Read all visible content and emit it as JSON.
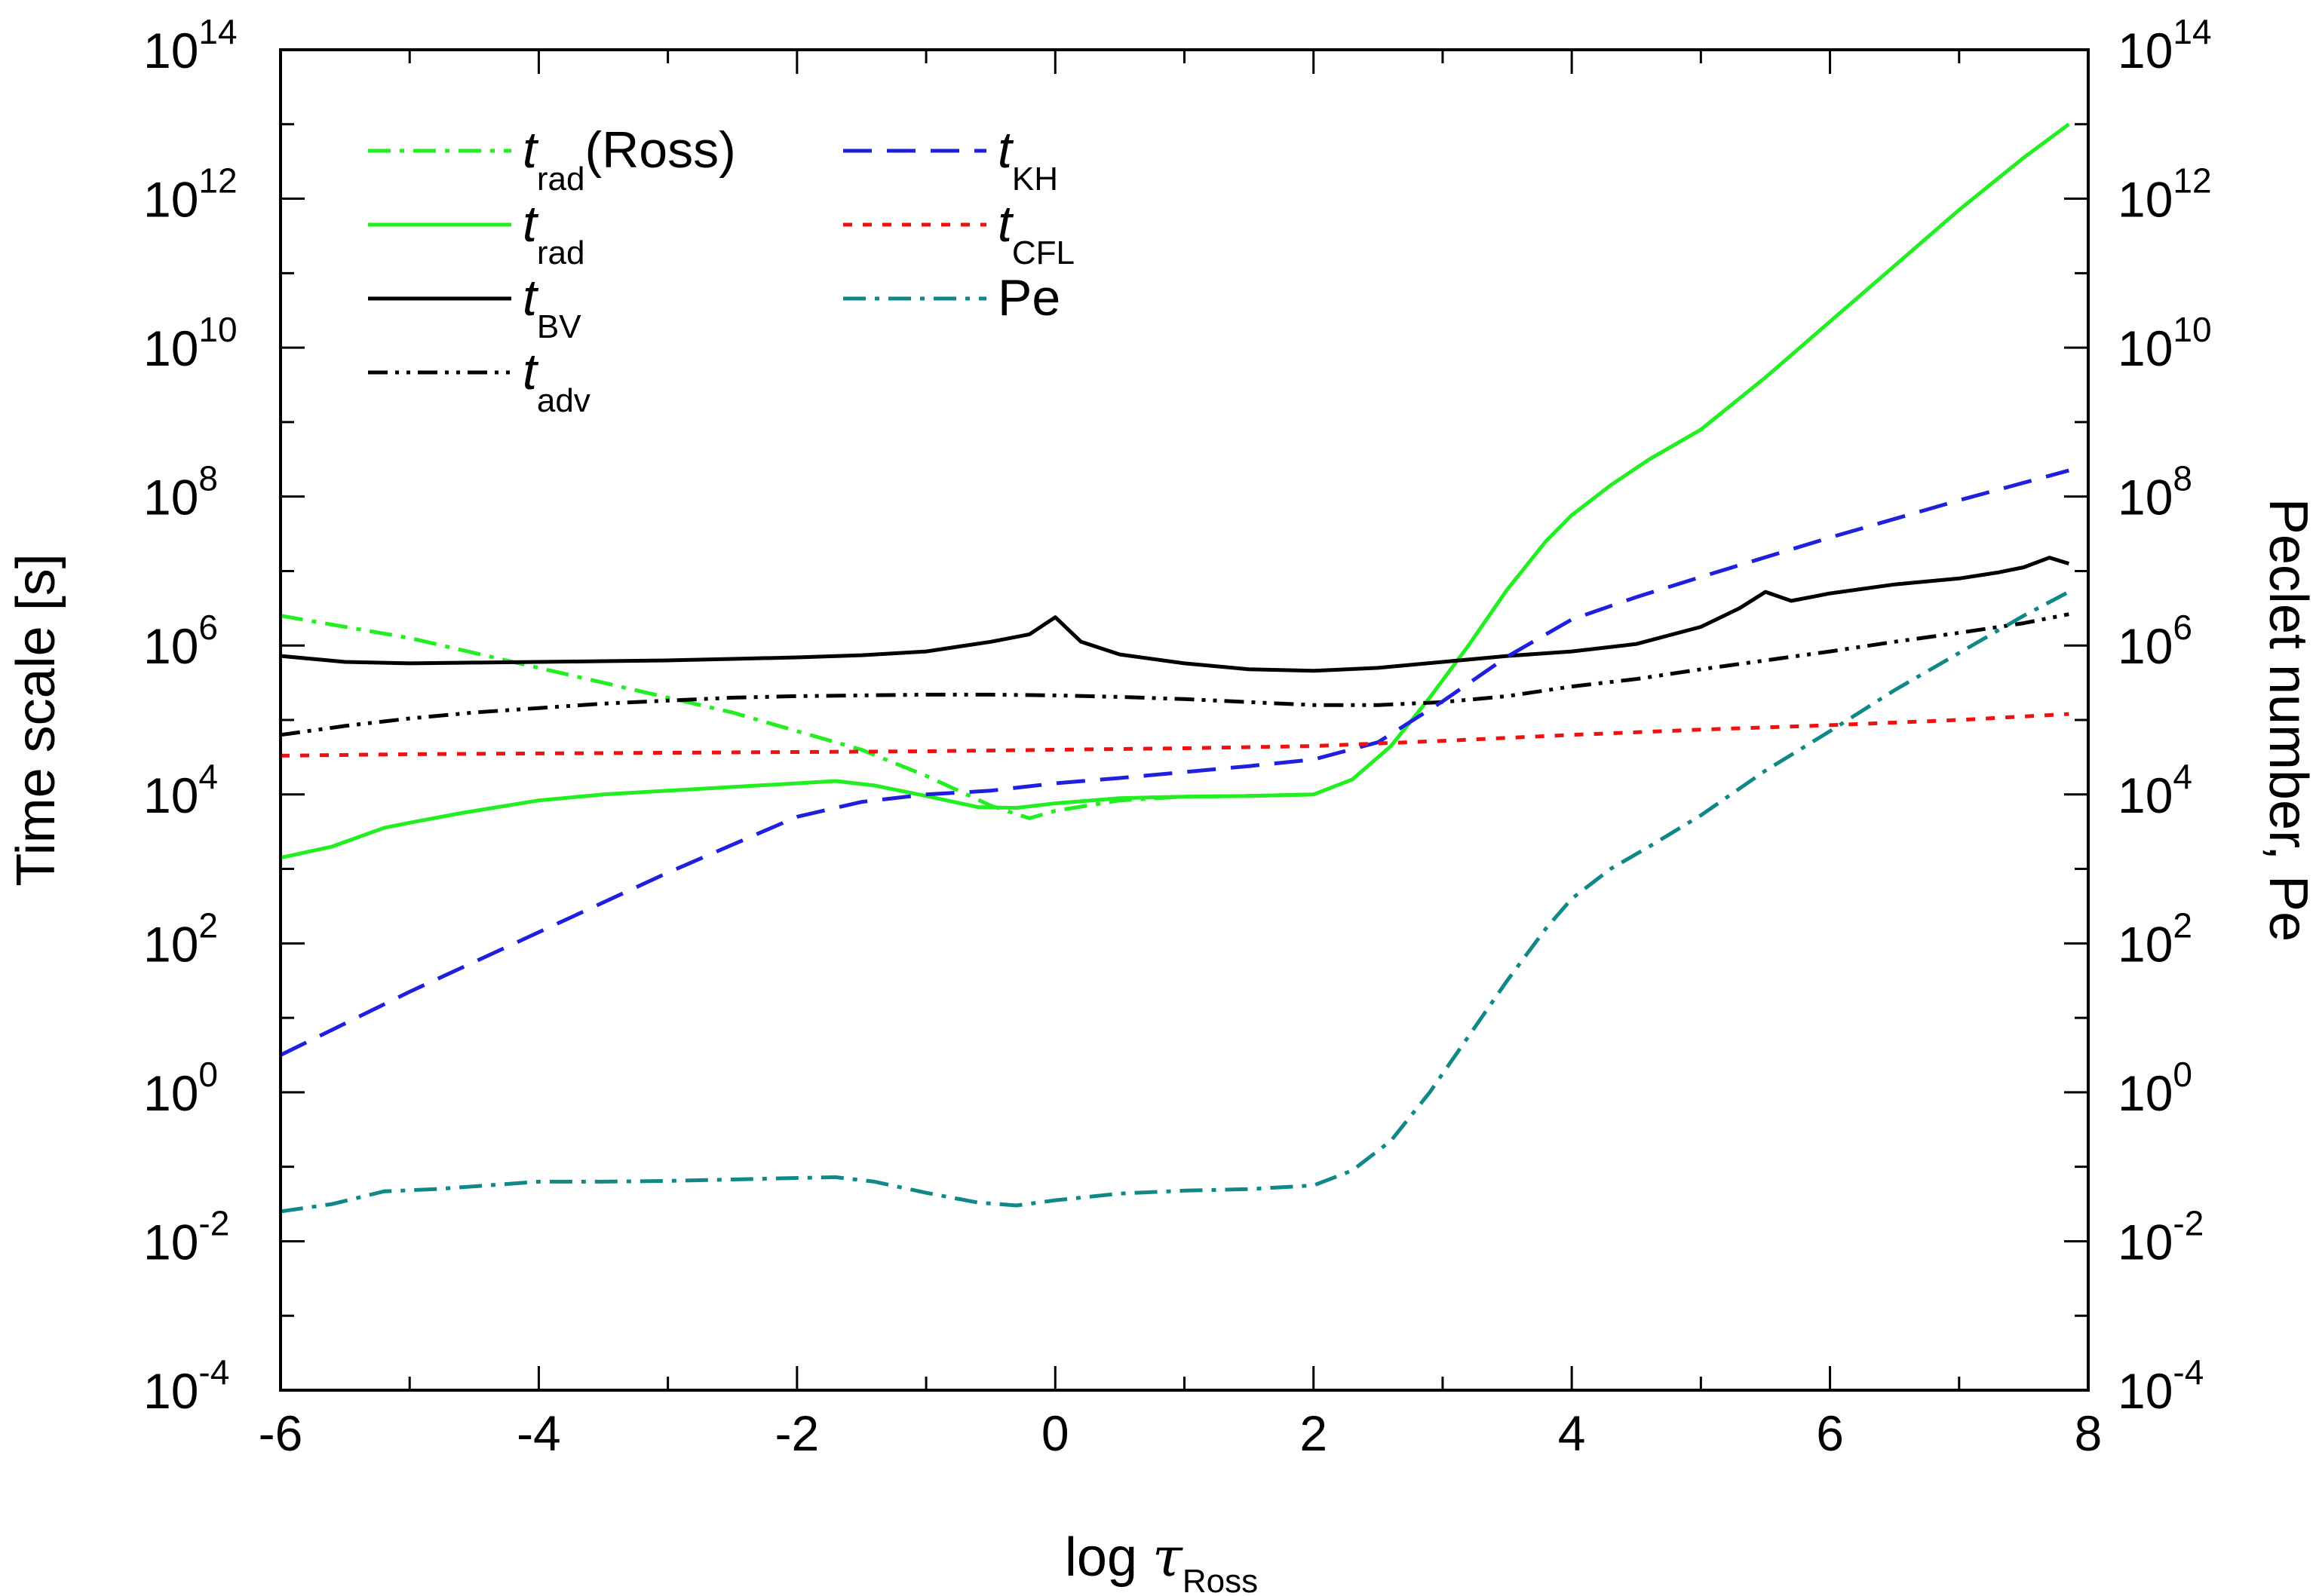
{
  "chart_data": {
    "type": "line",
    "xlabel": {
      "prefix": "log ",
      "symbol": "τ",
      "sub": "Ross"
    },
    "ylabel": "Time scale  [s]",
    "y2label": "Peclet number, Pe",
    "xlim": [
      -6,
      8
    ],
    "ylim_log10": [
      -4,
      14
    ],
    "y2lim_log10": [
      -4,
      14
    ],
    "xticks": [
      -6,
      -4,
      -2,
      0,
      2,
      4,
      6,
      8
    ],
    "xtick_labels": [
      "-6",
      "-4",
      "-2",
      "0",
      "2",
      "4",
      "6",
      "8"
    ],
    "yticks_log10": [
      -4,
      -2,
      0,
      2,
      4,
      6,
      8,
      10,
      12,
      14
    ],
    "ytick_labels": [
      {
        "base": "10",
        "exp": "-4"
      },
      {
        "base": "10",
        "exp": "-2"
      },
      {
        "base": "10",
        "exp": "0"
      },
      {
        "base": "10",
        "exp": "2"
      },
      {
        "base": "10",
        "exp": "4"
      },
      {
        "base": "10",
        "exp": "6"
      },
      {
        "base": "10",
        "exp": "8"
      },
      {
        "base": "10",
        "exp": "10"
      },
      {
        "base": "10",
        "exp": "12"
      },
      {
        "base": "10",
        "exp": "14"
      }
    ],
    "legend_position": "top-left",
    "series": [
      {
        "name": "t_rad(Ross)",
        "label_main": "t",
        "label_sub": "rad",
        "label_suffix": "(Ross)",
        "color": "#22ee22",
        "style": "dashdot",
        "x": [
          -6,
          -5.5,
          -5,
          -4.5,
          -4,
          -3.5,
          -3,
          -2.5,
          -2,
          -1.5,
          -1,
          -0.5,
          -0.2,
          0,
          0.5,
          1,
          1.5,
          2
        ],
        "log10_y": [
          6.4,
          6.25,
          6.1,
          5.9,
          5.7,
          5.5,
          5.3,
          5.1,
          4.85,
          4.6,
          4.25,
          3.85,
          3.68,
          3.78,
          3.92,
          3.97,
          3.98,
          4.0
        ]
      },
      {
        "name": "t_rad",
        "label_main": "t",
        "label_sub": "rad",
        "label_suffix": "",
        "color": "#22ee22",
        "style": "solid",
        "x": [
          -6,
          -5.6,
          -5.2,
          -5,
          -4.6,
          -4,
          -3.5,
          -3,
          -2.5,
          -2,
          -1.7,
          -1.4,
          -1,
          -0.6,
          -0.3,
          0,
          0.5,
          1,
          1.5,
          2,
          2.3,
          2.6,
          2.9,
          3.2,
          3.5,
          3.8,
          4,
          4.3,
          4.6,
          5,
          5.5,
          6,
          6.5,
          7,
          7.5,
          7.85
        ],
        "log10_y": [
          3.15,
          3.3,
          3.55,
          3.62,
          3.75,
          3.92,
          4.0,
          4.05,
          4.1,
          4.15,
          4.18,
          4.12,
          3.98,
          3.83,
          3.82,
          3.88,
          3.95,
          3.97,
          3.98,
          4.0,
          4.2,
          4.65,
          5.3,
          6.0,
          6.75,
          7.4,
          7.75,
          8.15,
          8.5,
          8.9,
          9.6,
          10.35,
          11.1,
          11.85,
          12.55,
          13.0
        ]
      },
      {
        "name": "t_BV",
        "label_main": "t",
        "label_sub": "BV",
        "label_suffix": "",
        "color": "#000000",
        "style": "solid",
        "x": [
          -6,
          -5.5,
          -5,
          -4.5,
          -4,
          -3.5,
          -3,
          -2.5,
          -2,
          -1.5,
          -1,
          -0.5,
          -0.2,
          0,
          0.2,
          0.5,
          1,
          1.5,
          2,
          2.5,
          3,
          3.5,
          4,
          4.5,
          5,
          5.3,
          5.5,
          5.7,
          6,
          6.5,
          7,
          7.3,
          7.5,
          7.7,
          7.85
        ],
        "log10_y": [
          5.86,
          5.78,
          5.76,
          5.77,
          5.78,
          5.79,
          5.8,
          5.82,
          5.84,
          5.87,
          5.92,
          6.05,
          6.15,
          6.38,
          6.05,
          5.88,
          5.76,
          5.68,
          5.66,
          5.7,
          5.78,
          5.86,
          5.92,
          6.02,
          6.25,
          6.5,
          6.72,
          6.6,
          6.7,
          6.82,
          6.9,
          6.98,
          7.05,
          7.18,
          7.1
        ]
      },
      {
        "name": "t_adv",
        "label_main": "t",
        "label_sub": "adv",
        "label_suffix": "",
        "color": "#000000",
        "style": "dashdotdot",
        "x": [
          -6,
          -5.5,
          -5,
          -4.5,
          -4,
          -3.5,
          -3,
          -2.5,
          -2,
          -1.5,
          -1,
          -0.5,
          0,
          0.5,
          1,
          1.5,
          2,
          2.5,
          3,
          3.5,
          4,
          4.5,
          5,
          5.5,
          6,
          6.5,
          7,
          7.5,
          7.85
        ],
        "log10_y": [
          4.8,
          4.92,
          5.02,
          5.1,
          5.16,
          5.22,
          5.26,
          5.3,
          5.32,
          5.33,
          5.34,
          5.34,
          5.33,
          5.31,
          5.28,
          5.24,
          5.2,
          5.2,
          5.24,
          5.32,
          5.45,
          5.55,
          5.68,
          5.8,
          5.92,
          6.05,
          6.17,
          6.3,
          6.42
        ]
      },
      {
        "name": "t_KH",
        "label_main": "t",
        "label_sub": "KH",
        "label_suffix": "",
        "color": "#1f1fdd",
        "style": "dashed",
        "x": [
          -6,
          -5,
          -4,
          -3,
          -2,
          -1.5,
          -1,
          -0.5,
          0,
          0.5,
          1,
          1.5,
          2,
          2.5,
          3,
          3.5,
          4,
          4.5,
          5,
          6,
          7,
          7.85
        ],
        "log10_y": [
          0.5,
          1.35,
          2.15,
          2.95,
          3.7,
          3.9,
          4.0,
          4.05,
          4.15,
          4.22,
          4.3,
          4.38,
          4.47,
          4.7,
          5.25,
          5.85,
          6.35,
          6.65,
          6.92,
          7.45,
          7.95,
          8.35
        ]
      },
      {
        "name": "t_CFL",
        "label_main": "t",
        "label_sub": "CFL",
        "label_suffix": "",
        "color": "#ee1111",
        "style": "dotted",
        "x": [
          -6,
          -5,
          -4,
          -3,
          -2,
          -1,
          0,
          1,
          2,
          3,
          4,
          5,
          6,
          7,
          7.85
        ],
        "log10_y": [
          4.52,
          4.54,
          4.55,
          4.56,
          4.57,
          4.58,
          4.6,
          4.62,
          4.65,
          4.72,
          4.8,
          4.87,
          4.93,
          5.0,
          5.08
        ]
      },
      {
        "name": "Pe",
        "label_main": "Pe",
        "label_sub": "",
        "label_suffix": "",
        "color": "#118888",
        "style": "dashdot",
        "x": [
          -6,
          -5.6,
          -5.2,
          -4.8,
          -4.4,
          -4,
          -3.5,
          -3,
          -2.5,
          -2,
          -1.7,
          -1.4,
          -1,
          -0.6,
          -0.3,
          0,
          0.5,
          1,
          1.5,
          2,
          2.3,
          2.6,
          2.9,
          3.2,
          3.5,
          3.8,
          4,
          4.3,
          4.6,
          5,
          5.5,
          6,
          6.5,
          7,
          7.5,
          7.85
        ],
        "log10_y": [
          -1.6,
          -1.5,
          -1.33,
          -1.3,
          -1.25,
          -1.2,
          -1.2,
          -1.19,
          -1.17,
          -1.15,
          -1.14,
          -1.2,
          -1.35,
          -1.48,
          -1.52,
          -1.45,
          -1.36,
          -1.32,
          -1.3,
          -1.25,
          -1.05,
          -0.65,
          0.0,
          0.75,
          1.5,
          2.2,
          2.6,
          3.0,
          3.3,
          3.72,
          4.32,
          4.85,
          5.4,
          5.9,
          6.4,
          6.72
        ]
      }
    ]
  }
}
